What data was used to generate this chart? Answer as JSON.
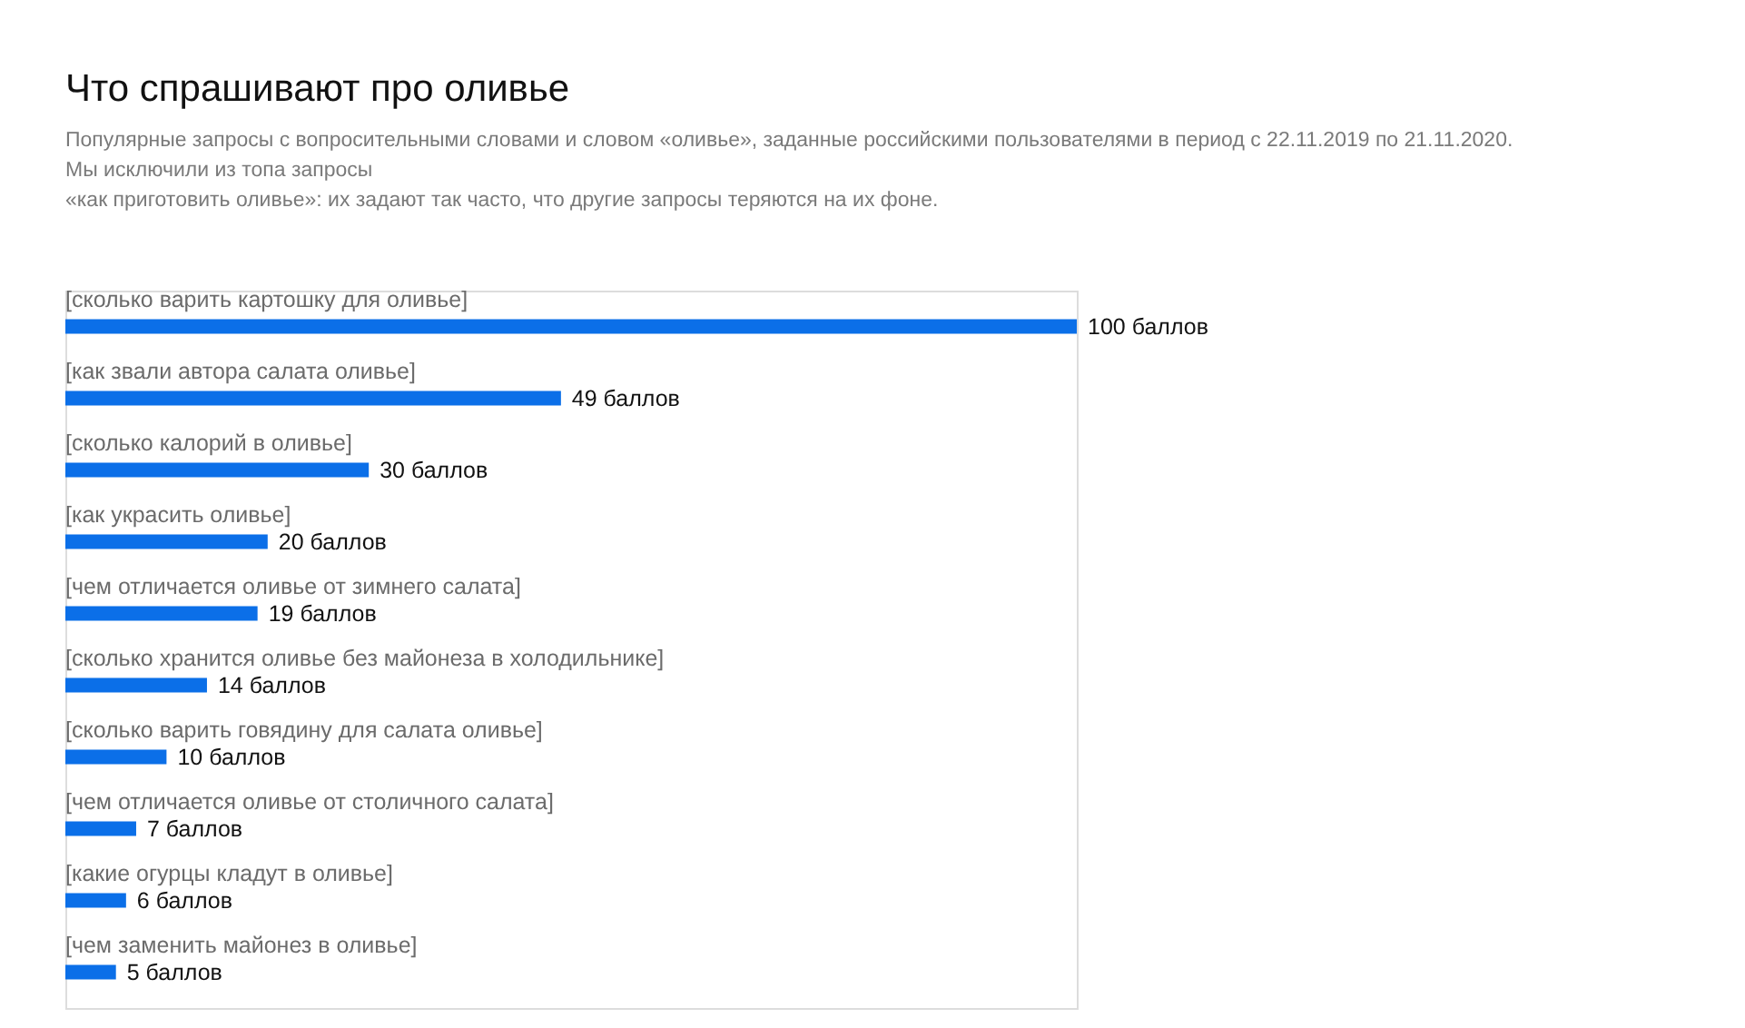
{
  "chart_data": {
    "type": "bar",
    "orientation": "horizontal",
    "title": "Что спрашивают про оливье",
    "subtitle": "Популярные запросы с вопросительными словами и словом «оливье», заданные российскими пользователями в период с 22.11.2019 по 21.11.2020.\nМы исключили из топа запросы\n«как приготовить оливье»: их задают так часто, что другие запросы теряются на их фоне.",
    "categories": [
      "[сколько варить картошку для оливье]",
      "[как звали автора салата оливье]",
      "[сколько калорий в оливье]",
      "[как украсить оливье]",
      "[чем отличается оливье от зимнего салата]",
      "[сколько хранится оливье без майонеза в холодильнике]",
      "[сколько варить говядину для салата оливье]",
      "[чем отличается оливье от столичного салата]",
      "[какие огурцы кладут в оливье]",
      "[чем заменить майонез в оливье]"
    ],
    "values": [
      100,
      49,
      30,
      20,
      19,
      14,
      10,
      7,
      6,
      5
    ],
    "value_labels": [
      "100 баллов",
      "49 баллов",
      "30 баллов",
      "20 баллов",
      "19 баллов",
      "14 баллов",
      "10 баллов",
      "7 баллов",
      "6 баллов",
      "5 баллов"
    ],
    "color": "#0b6fe8"
  }
}
